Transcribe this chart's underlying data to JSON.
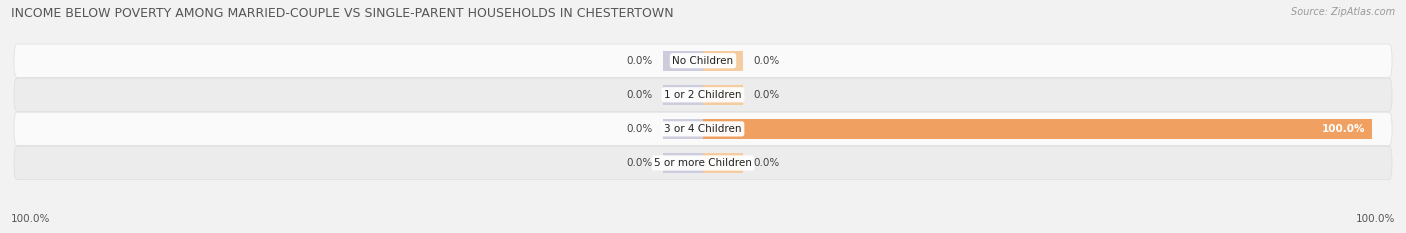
{
  "title": "INCOME BELOW POVERTY AMONG MARRIED-COUPLE VS SINGLE-PARENT HOUSEHOLDS IN CHESTERTOWN",
  "source": "Source: ZipAtlas.com",
  "categories": [
    "No Children",
    "1 or 2 Children",
    "3 or 4 Children",
    "5 or more Children"
  ],
  "married_values": [
    0.0,
    0.0,
    0.0,
    0.0
  ],
  "single_values": [
    0.0,
    0.0,
    100.0,
    0.0
  ],
  "married_color": "#9999cc",
  "married_color_faint": "#ccccdd",
  "single_color": "#f0a060",
  "single_color_faint": "#f5cca0",
  "bg_color": "#f2f2f2",
  "row_color_light": "#fafafa",
  "row_color_dark": "#ececec",
  "title_fontsize": 9,
  "source_fontsize": 7,
  "label_fontsize": 7.5,
  "cat_fontsize": 7.5,
  "left_axis_label": "100.0%",
  "right_axis_label": "100.0%",
  "bar_height": 0.58,
  "max_val": 100
}
